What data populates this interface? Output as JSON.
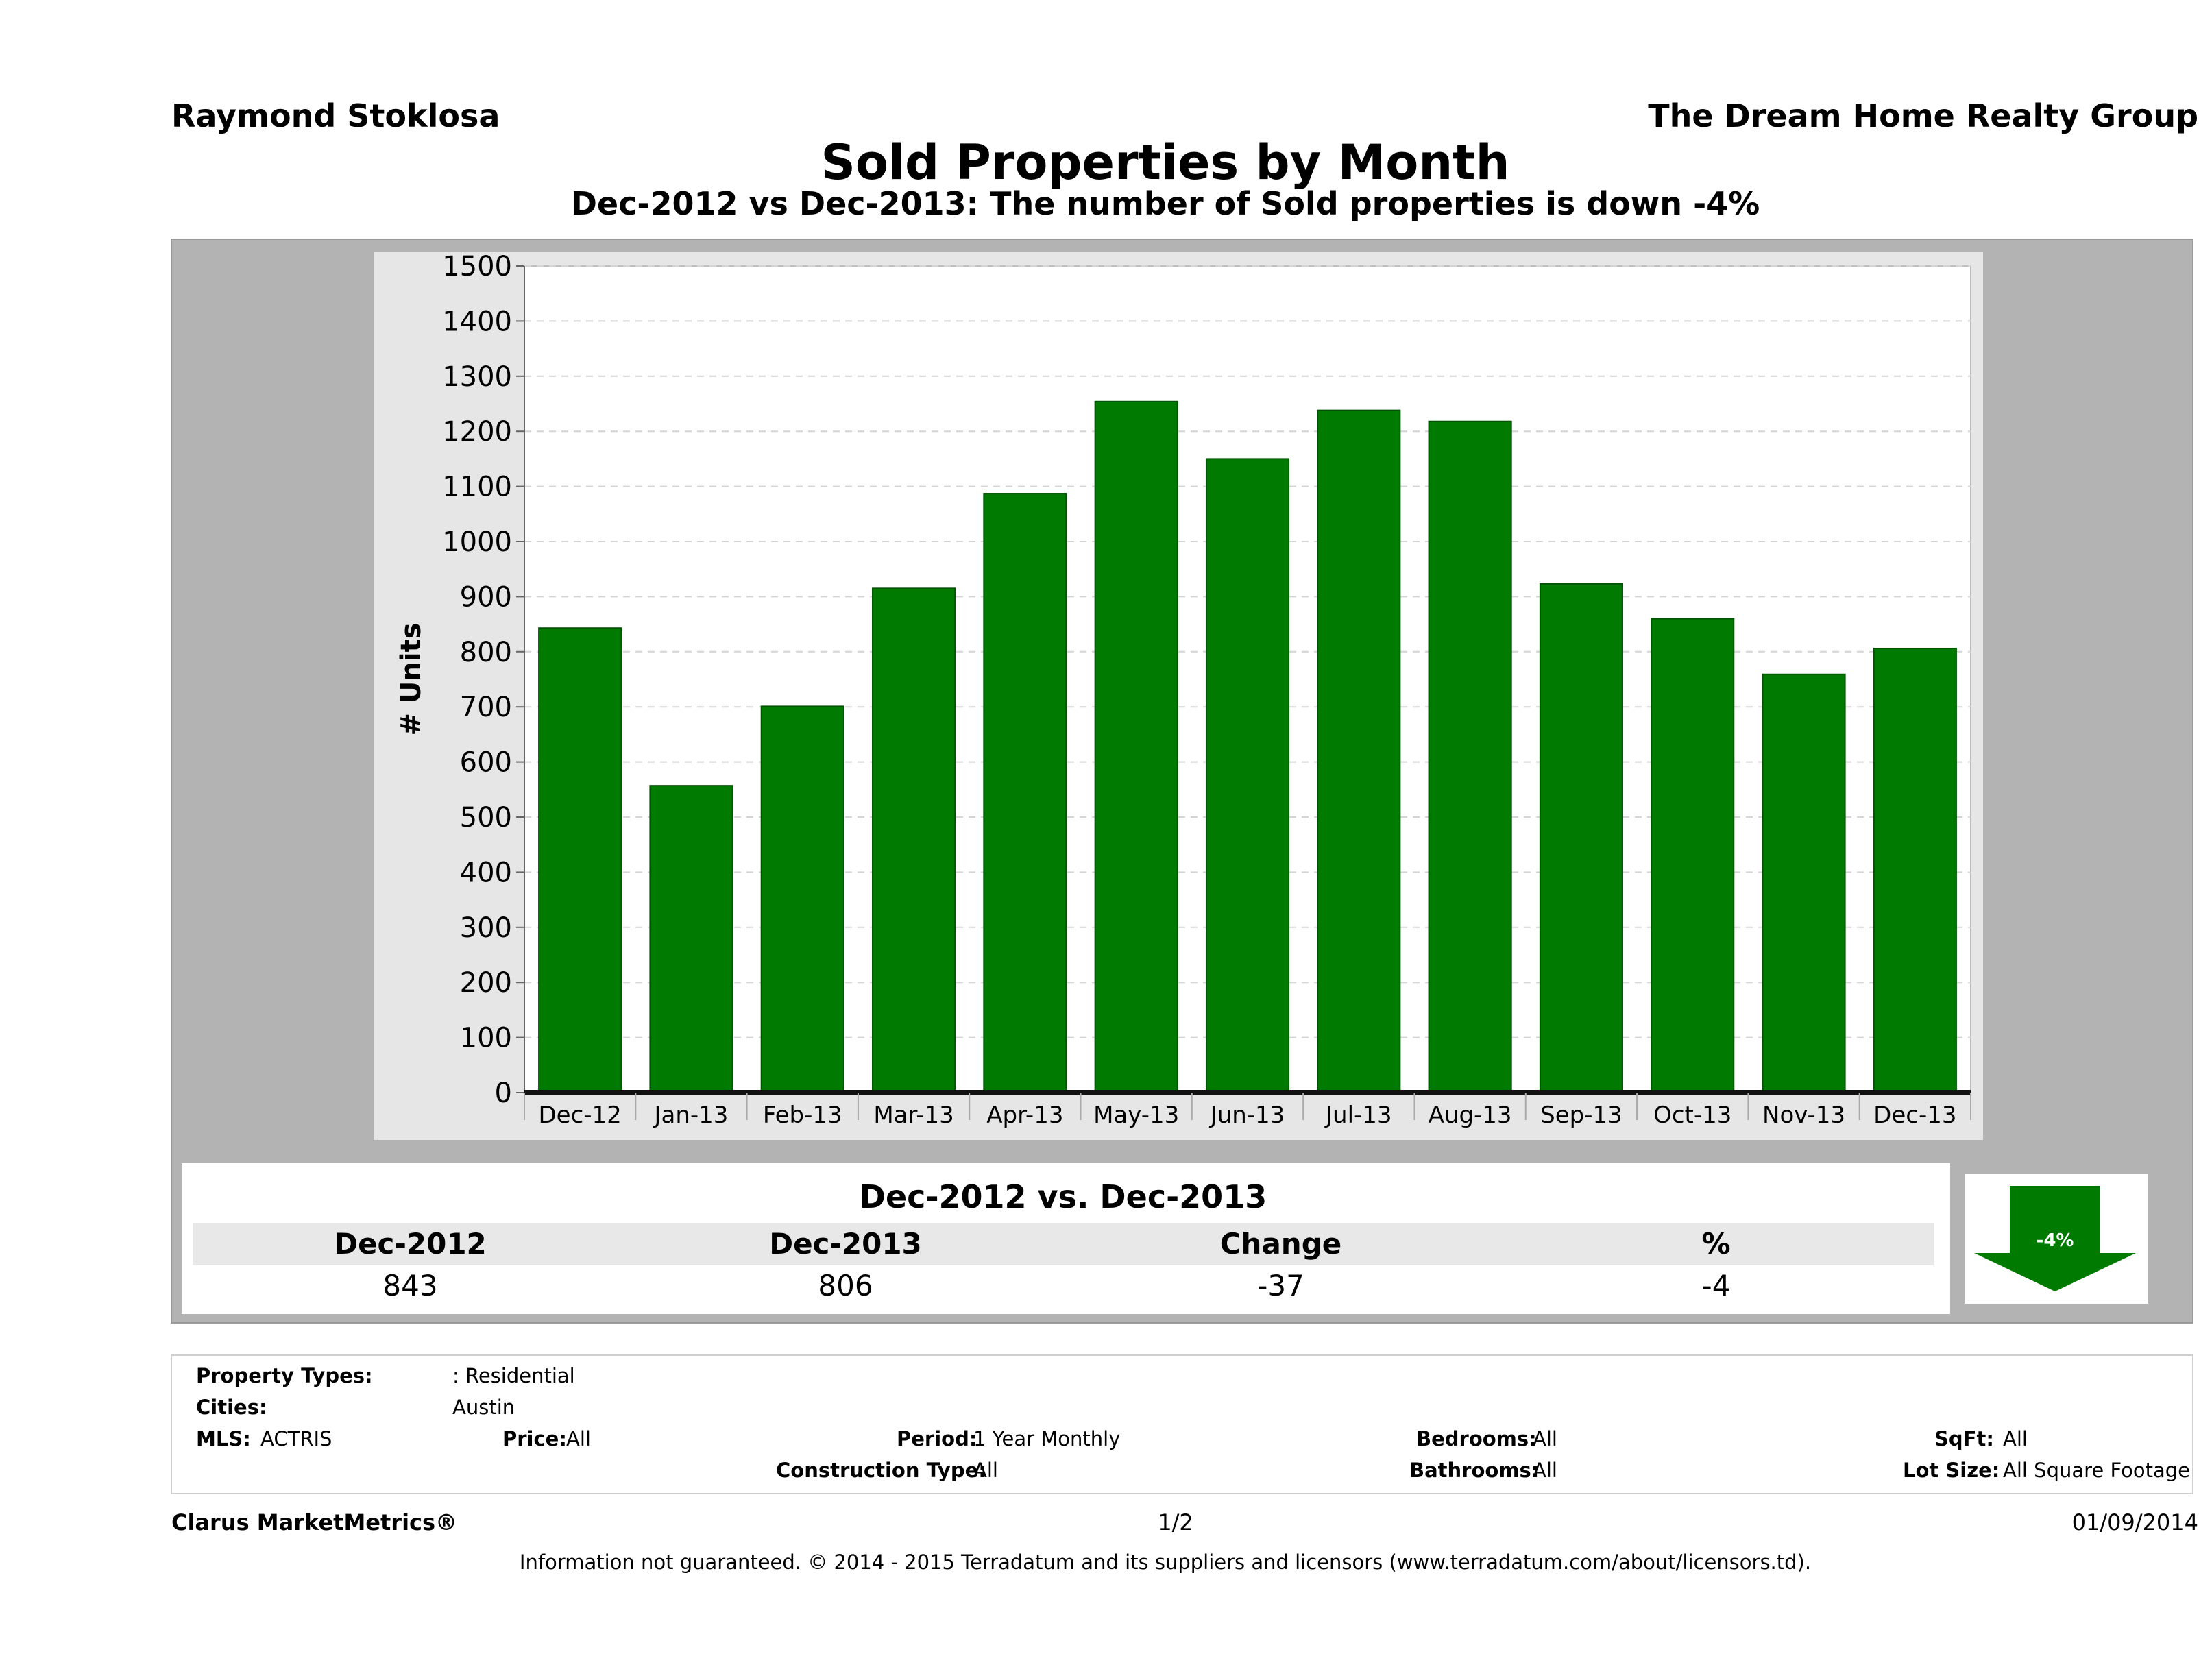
{
  "header": {
    "agent_name": "Raymond Stoklosa",
    "company": "The Dream Home Realty Group",
    "title": "Sold Properties by Month",
    "subtitle": "Dec-2012 vs Dec-2013: The number of Sold   properties is down -4%"
  },
  "chart_data": {
    "type": "bar",
    "title": "Sold Properties by Month",
    "ylabel": "# Units",
    "xlabel": "",
    "ylim": [
      0,
      1500
    ],
    "yticks": [
      0,
      100,
      200,
      300,
      400,
      500,
      600,
      700,
      800,
      900,
      1000,
      1100,
      1200,
      1300,
      1400,
      1500
    ],
    "categories": [
      "Dec-12",
      "Jan-13",
      "Feb-13",
      "Mar-13",
      "Apr-13",
      "May-13",
      "Jun-13",
      "Jul-13",
      "Aug-13",
      "Sep-13",
      "Oct-13",
      "Nov-13",
      "Dec-13"
    ],
    "values": [
      843,
      557,
      701,
      915,
      1087,
      1254,
      1150,
      1238,
      1218,
      923,
      860,
      759,
      806
    ],
    "bar_color": "#007a00",
    "grid": true,
    "legend": "none"
  },
  "summary": {
    "title": "Dec-2012 vs. Dec-2013",
    "headers": [
      "Dec-2012",
      "Dec-2013",
      "Change",
      "%"
    ],
    "values": [
      "843",
      "806",
      "-37",
      "-4"
    ],
    "arrow_label": "-4%",
    "arrow_direction": "down",
    "arrow_color": "#007a00"
  },
  "filters": {
    "property_types_label": "Property Types:",
    "property_types_value": ": Residential",
    "cities_label": "Cities:",
    "cities_value": "Austin",
    "mls_label": "MLS:",
    "mls_value": "ACTRIS",
    "price_label": "Price:",
    "price_value": "All",
    "period_label": "Period:",
    "period_value": "1 Year Monthly",
    "construction_label": "Construction Type:",
    "construction_value": "All",
    "bedrooms_label": "Bedrooms:",
    "bedrooms_value": "All",
    "bathrooms_label": "Bathrooms:",
    "bathrooms_value": "All",
    "sqft_label": "SqFt:",
    "sqft_value": "All",
    "lotsize_label": "Lot Size:",
    "lotsize_value": "All Square Footage"
  },
  "footer": {
    "brand": "Clarus MarketMetrics®",
    "page": "1/2",
    "date": "01/09/2014",
    "disclaimer": "Information not guaranteed. © 2014 - 2015 Terradatum and its suppliers and licensors (www.terradatum.com/about/licensors.td)."
  }
}
